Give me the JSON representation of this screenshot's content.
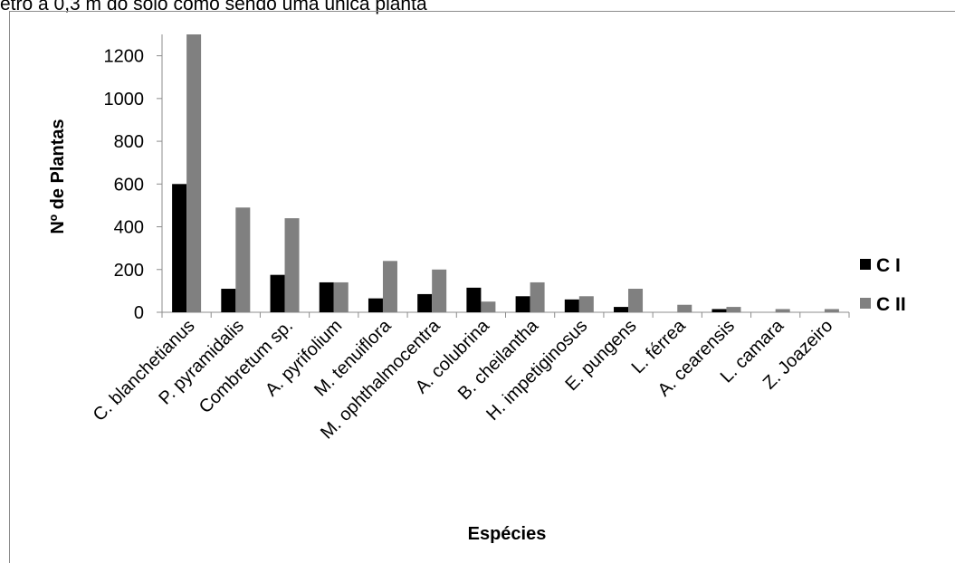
{
  "caption": "etro a 0,3 m do solo como sendo uma única planta",
  "chart_data": {
    "type": "bar",
    "title": "",
    "xlabel": "Espécies",
    "ylabel": "Nº de Plantas",
    "ylim": [
      0,
      1300
    ],
    "yticks": [
      0,
      200,
      400,
      600,
      800,
      1000,
      1200
    ],
    "grid": false,
    "legend_position": "right",
    "categories": [
      "C. blanchetianus",
      "P. pyramidalis",
      "Combretum sp.",
      "A. pyrifolium",
      "M. tenuiflora",
      "M. ophthalmocentra",
      "A. colubrina",
      "B. cheilantha",
      "H. impetiginosus",
      "E. pungens",
      "L. férrea",
      "A. cearensis",
      "L. camara",
      "Z. Joazeiro"
    ],
    "series": [
      {
        "name": "C I",
        "color": "#000000",
        "values": [
          600,
          110,
          175,
          140,
          65,
          85,
          115,
          75,
          60,
          25,
          0,
          15,
          0,
          0
        ]
      },
      {
        "name": "C II",
        "color": "#808080",
        "values": [
          1300,
          490,
          440,
          140,
          240,
          200,
          50,
          140,
          75,
          110,
          35,
          25,
          15,
          15
        ]
      }
    ]
  }
}
